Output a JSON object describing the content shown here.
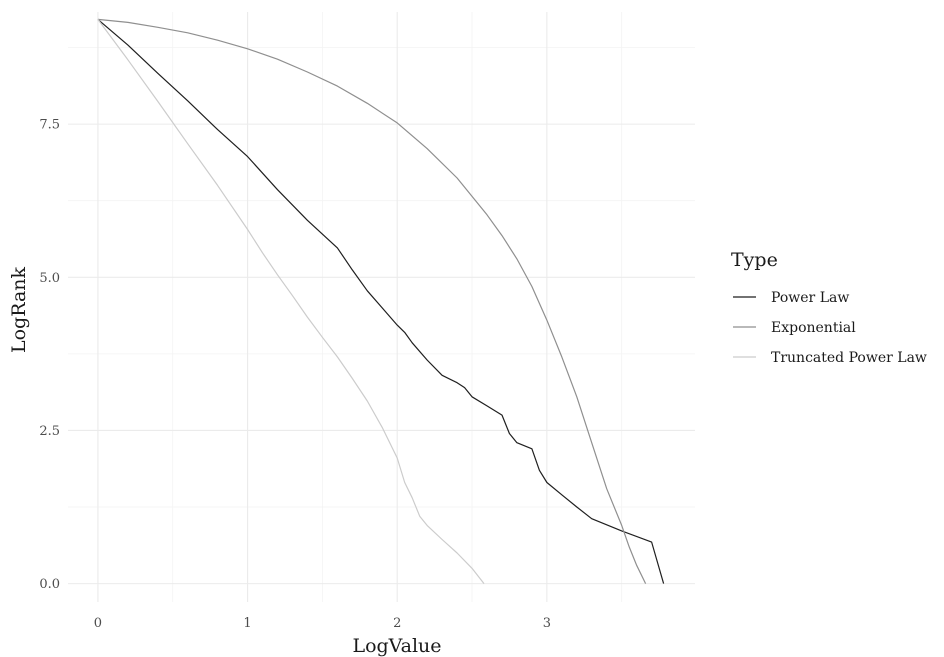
{
  "chart_data": {
    "type": "line",
    "xlabel": "LogValue",
    "ylabel": "LogRank",
    "xlim": [
      -0.2,
      3.99
    ],
    "ylim": [
      -0.3,
      9.33
    ],
    "x_ticks": [
      0,
      1,
      2,
      3
    ],
    "y_ticks": [
      0.0,
      2.5,
      5.0,
      7.5
    ],
    "x_tick_labels": [
      "0",
      "1",
      "2",
      "3"
    ],
    "y_tick_labels": [
      "0.0",
      "2.5",
      "5.0",
      "7.5"
    ],
    "grid": true,
    "legend": {
      "title": "Type",
      "position": "right"
    },
    "series": [
      {
        "name": "Power Law",
        "color": "#1f1f1f",
        "points": [
          [
            0.0,
            9.21
          ],
          [
            0.2,
            8.79
          ],
          [
            0.4,
            8.33
          ],
          [
            0.6,
            7.88
          ],
          [
            0.8,
            7.41
          ],
          [
            1.0,
            6.97
          ],
          [
            1.2,
            6.43
          ],
          [
            1.4,
            5.93
          ],
          [
            1.6,
            5.48
          ],
          [
            1.7,
            5.12
          ],
          [
            1.8,
            4.78
          ],
          [
            1.9,
            4.5
          ],
          [
            2.0,
            4.22
          ],
          [
            2.05,
            4.1
          ],
          [
            2.1,
            3.93
          ],
          [
            2.2,
            3.65
          ],
          [
            2.3,
            3.4
          ],
          [
            2.4,
            3.28
          ],
          [
            2.45,
            3.2
          ],
          [
            2.5,
            3.05
          ],
          [
            2.6,
            2.9
          ],
          [
            2.7,
            2.75
          ],
          [
            2.75,
            2.45
          ],
          [
            2.8,
            2.3
          ],
          [
            2.9,
            2.2
          ],
          [
            2.95,
            1.85
          ],
          [
            3.0,
            1.65
          ],
          [
            3.1,
            1.45
          ],
          [
            3.2,
            1.25
          ],
          [
            3.3,
            1.06
          ],
          [
            3.5,
            0.86
          ],
          [
            3.7,
            0.68
          ],
          [
            3.78,
            0.0
          ]
        ]
      },
      {
        "name": "Exponential",
        "color": "#8f8f8f",
        "points": [
          [
            0.0,
            9.21
          ],
          [
            0.2,
            9.16
          ],
          [
            0.4,
            9.08
          ],
          [
            0.6,
            8.99
          ],
          [
            0.8,
            8.87
          ],
          [
            1.0,
            8.73
          ],
          [
            1.2,
            8.56
          ],
          [
            1.4,
            8.35
          ],
          [
            1.6,
            8.12
          ],
          [
            1.8,
            7.84
          ],
          [
            2.0,
            7.52
          ],
          [
            2.2,
            7.1
          ],
          [
            2.4,
            6.62
          ],
          [
            2.6,
            6.02
          ],
          [
            2.7,
            5.68
          ],
          [
            2.8,
            5.3
          ],
          [
            2.9,
            4.85
          ],
          [
            3.0,
            4.3
          ],
          [
            3.1,
            3.7
          ],
          [
            3.2,
            3.05
          ],
          [
            3.3,
            2.3
          ],
          [
            3.4,
            1.55
          ],
          [
            3.5,
            0.95
          ],
          [
            3.55,
            0.6
          ],
          [
            3.6,
            0.3
          ],
          [
            3.66,
            0.0
          ]
        ]
      },
      {
        "name": "Truncated Power Law",
        "color": "#cccccc",
        "points": [
          [
            0.0,
            9.21
          ],
          [
            0.2,
            8.55
          ],
          [
            0.4,
            7.87
          ],
          [
            0.6,
            7.18
          ],
          [
            0.8,
            6.5
          ],
          [
            1.0,
            5.78
          ],
          [
            1.1,
            5.4
          ],
          [
            1.2,
            5.04
          ],
          [
            1.3,
            4.7
          ],
          [
            1.4,
            4.35
          ],
          [
            1.5,
            4.02
          ],
          [
            1.6,
            3.7
          ],
          [
            1.7,
            3.35
          ],
          [
            1.8,
            2.98
          ],
          [
            1.9,
            2.55
          ],
          [
            2.0,
            2.05
          ],
          [
            2.05,
            1.65
          ],
          [
            2.1,
            1.4
          ],
          [
            2.15,
            1.1
          ],
          [
            2.2,
            0.95
          ],
          [
            2.3,
            0.72
          ],
          [
            2.4,
            0.5
          ],
          [
            2.5,
            0.25
          ],
          [
            2.58,
            0.0
          ]
        ]
      }
    ]
  }
}
